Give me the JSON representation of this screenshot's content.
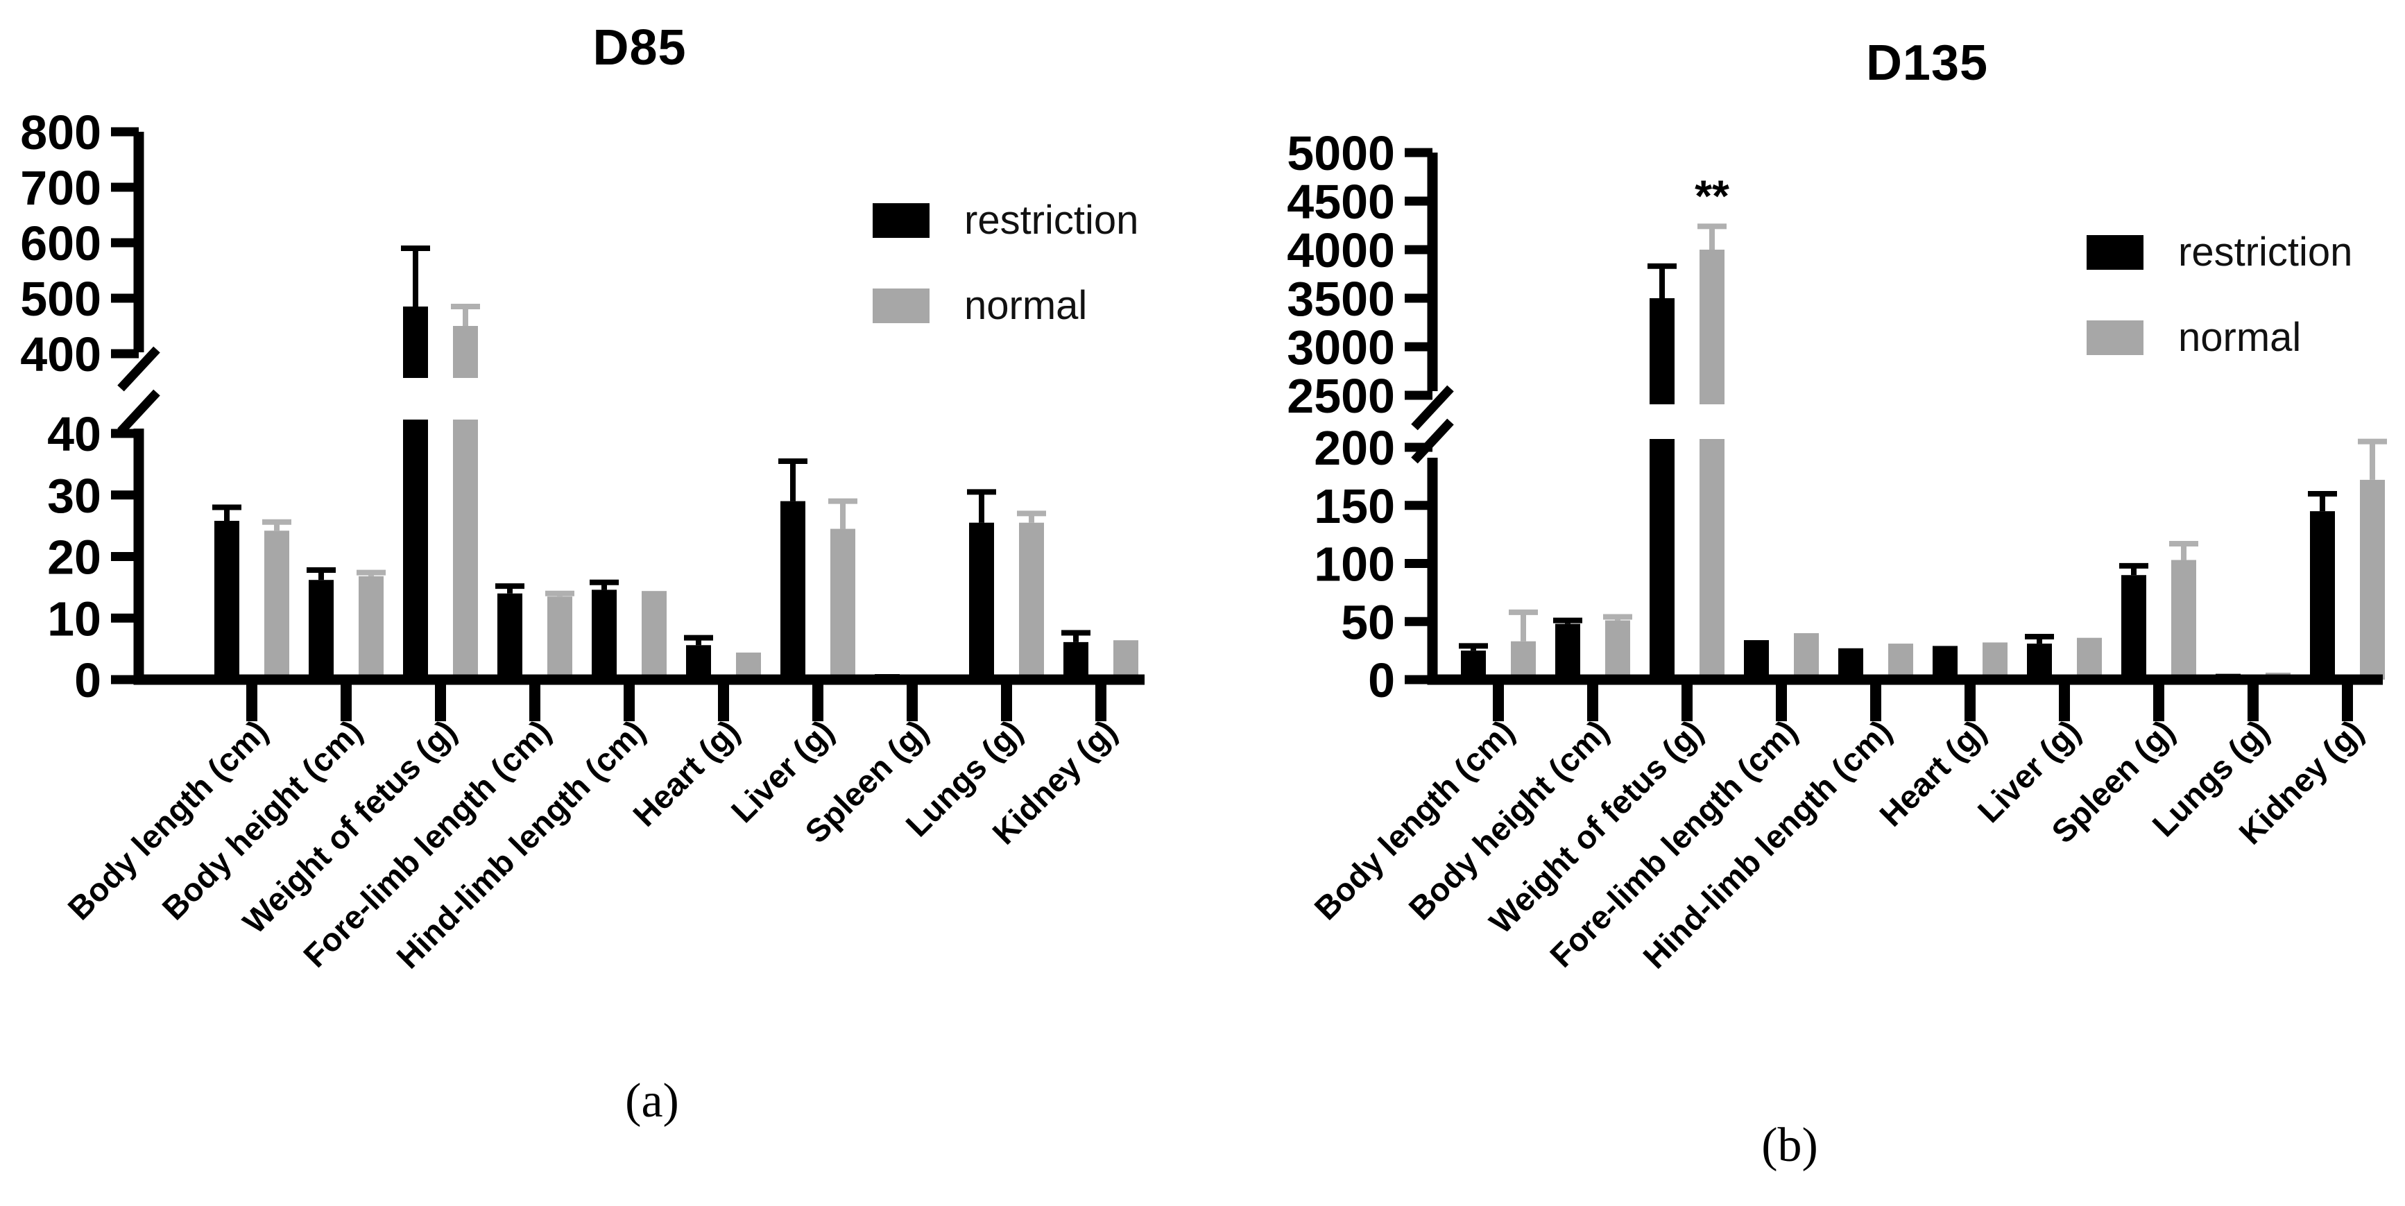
{
  "figure_titles": {
    "panel_a": "D85",
    "panel_b": "D135"
  },
  "captions": {
    "a": "(a)",
    "b": "(b)"
  },
  "legend": {
    "items": [
      {
        "label": "restriction",
        "color": "#000000"
      },
      {
        "label": "normal",
        "color": "#a7a7a7"
      }
    ]
  },
  "colors": {
    "axis": "#000000",
    "text": "#000000",
    "gray_error_bar": "#b0b0b0"
  },
  "chart_data": [
    {
      "type": "bar",
      "title": "D85",
      "categories": [
        "Body length (cm)",
        "Body height  (cm)",
        "Weight of fetus  (g)",
        "Fore-limb length  (cm)",
        "Hind-limb length  (cm)",
        "Heart  (g)",
        "Liver  (g)",
        "Spleen  (g)",
        "Lungs  (g)",
        "Kidney  (g)"
      ],
      "series": [
        {
          "name": "restriction",
          "values": [
            25.8,
            16.2,
            485,
            14.0,
            14.6,
            5.6,
            29.0,
            0.9,
            25.5,
            6.1
          ],
          "errors": [
            2.2,
            1.6,
            105,
            1.2,
            1.2,
            1.2,
            6.5,
            0.2,
            5.0,
            1.5
          ]
        },
        {
          "name": "normal",
          "values": [
            24.2,
            16.8,
            450,
            13.5,
            14.4,
            4.4,
            24.5,
            0.5,
            25.5,
            6.4
          ],
          "errors": [
            1.4,
            0.6,
            35,
            0.5,
            0.3,
            0.4,
            4.5,
            0.1,
            1.5,
            0.3
          ]
        }
      ],
      "y_axis": {
        "broken": true,
        "lower": {
          "min": 0,
          "max": 40,
          "ticks": [
            0,
            10,
            20,
            30,
            40
          ]
        },
        "upper": {
          "min": 400,
          "max": 800,
          "ticks": [
            400,
            500,
            600,
            700,
            800
          ]
        }
      },
      "significance": []
    },
    {
      "type": "bar",
      "title": "D135",
      "categories": [
        "Body length (cm)",
        "Body height (cm)",
        "Weight of fetus (g)",
        "Fore-limb length (cm)",
        "Hind-limb length  (cm)",
        "Heart (g)",
        "Liver (g)",
        "Spleen (g)",
        "Lungs (g)",
        "Kidney (g)"
      ],
      "series": [
        {
          "name": "restriction",
          "values": [
            25,
            48,
            3500,
            34,
            27,
            29,
            31,
            90,
            5,
            145
          ],
          "errors": [
            4,
            3,
            330,
            2,
            1,
            2,
            6,
            8,
            1,
            15
          ]
        },
        {
          "name": "normal",
          "values": [
            33,
            51,
            4000,
            40,
            31,
            32,
            36,
            103,
            6,
            172
          ],
          "errors": [
            25,
            3,
            240,
            2,
            1,
            2,
            2,
            14,
            1,
            33
          ]
        }
      ],
      "y_axis": {
        "broken": true,
        "lower": {
          "min": 0,
          "max": 200,
          "ticks": [
            0,
            50,
            100,
            150,
            200
          ]
        },
        "upper": {
          "min": 2500,
          "max": 5000,
          "ticks": [
            2500,
            3000,
            3500,
            4000,
            4500,
            5000
          ]
        }
      },
      "significance": [
        {
          "category_index": 2,
          "series": "normal",
          "label": "**"
        }
      ]
    }
  ]
}
